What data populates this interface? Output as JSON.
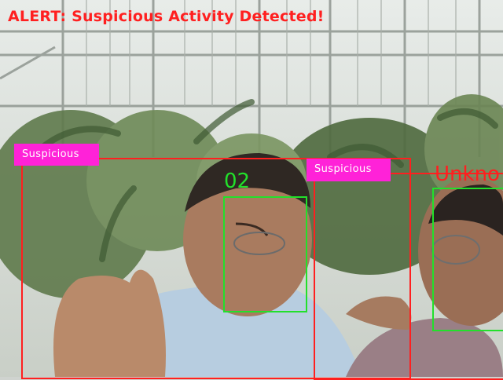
{
  "overlay": {
    "alert_text": "ALERT: Suspicious Activity Detected!",
    "alert_color": "#ff2020",
    "tag_color": "#ff22d8",
    "box_red": "#ff1f1f",
    "box_green": "#22e02b"
  },
  "detections": {
    "person_left": {
      "tag": "Suspicious"
    },
    "person_right": {
      "tag": "Suspicious"
    }
  },
  "faces": {
    "face_left": {
      "label": "02"
    },
    "face_right": {
      "label": "Unkno"
    }
  }
}
